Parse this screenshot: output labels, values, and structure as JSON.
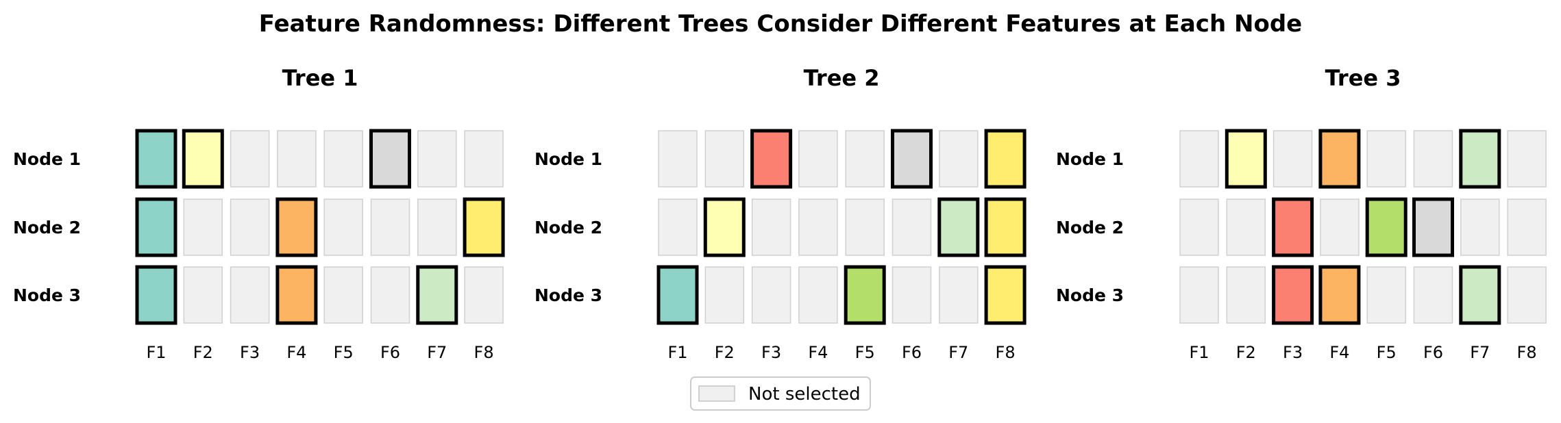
{
  "title": "Feature Randomness: Different Trees Consider Different Features at Each Node",
  "features": [
    "F1",
    "F2",
    "F3",
    "F4",
    "F5",
    "F6",
    "F7",
    "F8"
  ],
  "nodes": [
    "Node 1",
    "Node 2",
    "Node 3"
  ],
  "feature_colors": [
    "#8dd3c7",
    "#ffffb3",
    "#fb8072",
    "#fdb462",
    "#b3de69",
    "#d9d9d9",
    "#ccebc5",
    "#ffed6f"
  ],
  "unselected_color": "#f0f0f0",
  "unselected_border_color": "#d0d0d0",
  "selected_border_color": "#000000",
  "trees": [
    {
      "title": "Tree 1",
      "selected": [
        [
          1,
          2,
          6
        ],
        [
          1,
          4,
          8
        ],
        [
          1,
          4,
          7
        ]
      ]
    },
    {
      "title": "Tree 2",
      "selected": [
        [
          3,
          6,
          8
        ],
        [
          2,
          7,
          8
        ],
        [
          1,
          5,
          8
        ]
      ]
    },
    {
      "title": "Tree 3",
      "selected": [
        [
          2,
          4,
          7
        ],
        [
          3,
          5,
          6
        ],
        [
          3,
          4,
          7
        ]
      ]
    }
  ],
  "legend": {
    "label": "Not selected"
  }
}
